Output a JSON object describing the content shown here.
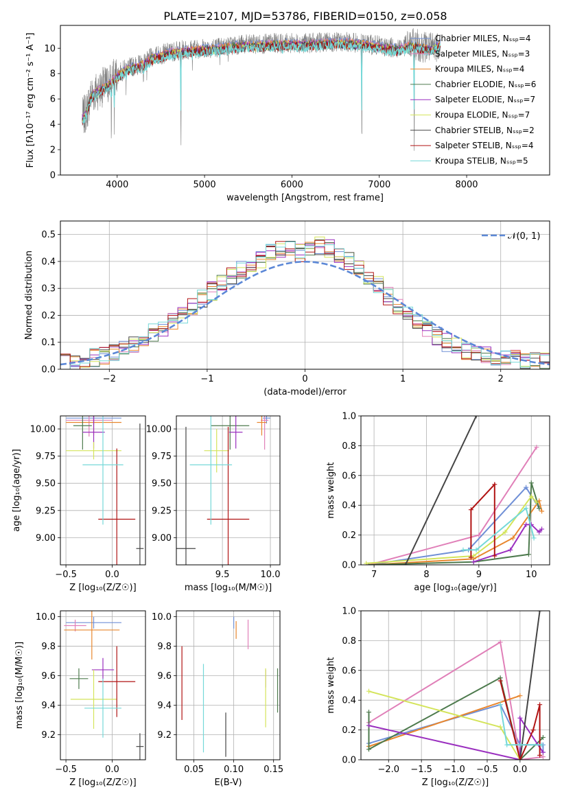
{
  "colors": {
    "spectrum": "#808080",
    "models": [
      "#6f8fd6",
      "#e07fb8",
      "#e8862d",
      "#4d7a4d",
      "#9a2fbf",
      "#d4e45a",
      "#444444",
      "#b01212",
      "#74d8d8"
    ],
    "normal_curve": "#5b87d6",
    "grid": "#b0b0b0"
  },
  "model_names": [
    "Chabrier MILES",
    "Salpeter MILES",
    "Kroupa MILES",
    "Chabrier ELODIE",
    "Salpeter ELODIE",
    "Kroupa ELODIE",
    "Chabrier STELIB",
    "Salpeter STELIB",
    "Kroupa STELIB"
  ],
  "chart_data": [
    {
      "id": "spectrum",
      "type": "line",
      "title": "PLATE=2107, MJD=53786, FIBERID=0150, z=0.058",
      "xlabel": "wavelength [Angstrom, rest frame]",
      "ylabel": "Flux [fλ10⁻¹⁷ erg cm⁻² s⁻¹ A⁻¹]",
      "xlim": [
        3350,
        8950
      ],
      "ylim": [
        0,
        11.8
      ],
      "xticks": [
        4000,
        5000,
        6000,
        7000,
        8000
      ],
      "yticks": [
        0,
        2,
        4,
        6,
        8,
        10
      ],
      "legend_position": "right",
      "legend": [
        "Chabrier MILES, Nₛₛₚ=4",
        "Salpeter MILES, Nₛₛₚ=3",
        "Kroupa MILES, Nₛₛₚ=4",
        "Chabrier ELODIE, Nₛₛₚ=6",
        "Salpeter ELODIE, Nₛₛₚ=7",
        "Kroupa ELODIE, Nₛₛₚ=7",
        "Chabrier STELIB, Nₛₛₚ=2",
        "Salpeter STELIB, Nₛₛₚ=4",
        "Kroupa STELIB, Nₛₛₚ=5"
      ],
      "continuum": {
        "x": [
          3600,
          3650,
          3700,
          3800,
          3900,
          4000,
          4100,
          4200,
          4300,
          4400,
          4500,
          4600,
          4800,
          5000,
          5200,
          5400,
          5600,
          5800,
          6000,
          6200,
          6400,
          6600,
          6800,
          7000,
          7200,
          7400,
          7600,
          7700
        ],
        "y": [
          4.5,
          5.0,
          6.3,
          6.8,
          7.2,
          7.9,
          8.4,
          8.6,
          8.8,
          9.3,
          9.5,
          9.7,
          9.9,
          10.0,
          10.1,
          10.3,
          10.3,
          10.4,
          10.4,
          10.4,
          10.5,
          10.5,
          10.4,
          10.2,
          10.0,
          10.3,
          10.0,
          10.4
        ]
      },
      "absorption_lines": [
        {
          "x": 3933,
          "depth": 5.0
        },
        {
          "x": 3968,
          "depth": 4.0
        },
        {
          "x": 4102,
          "depth": 1.6
        },
        {
          "x": 4300,
          "depth": 1.8
        },
        {
          "x": 4340,
          "depth": 1.4
        },
        {
          "x": 4730,
          "depth": 9.8
        },
        {
          "x": 4861,
          "depth": 1.0
        },
        {
          "x": 5175,
          "depth": 1.6
        },
        {
          "x": 5270,
          "depth": 0.8
        },
        {
          "x": 5890,
          "depth": 1.2
        },
        {
          "x": 6800,
          "depth": 10.4
        },
        {
          "x": 7400,
          "depth": 10.3
        }
      ]
    },
    {
      "id": "residuals",
      "type": "histogram",
      "xlabel": "(data-model)/error",
      "ylabel": "Normed distribution",
      "xlim": [
        -2.5,
        2.5
      ],
      "ylim": [
        0,
        0.55
      ],
      "xticks": [
        -2,
        -1,
        0,
        1,
        2
      ],
      "yticks": [
        0.0,
        0.1,
        0.2,
        0.3,
        0.4,
        0.5
      ],
      "legend_position": "top-right",
      "legend": "𝒩(0, 1)",
      "bin_edges": [
        -2.5,
        -2.4,
        -2.3,
        -2.2,
        -2.1,
        -2.0,
        -1.9,
        -1.8,
        -1.7,
        -1.6,
        -1.5,
        -1.4,
        -1.3,
        -1.2,
        -1.1,
        -1.0,
        -0.9,
        -0.8,
        -0.7,
        -0.6,
        -0.5,
        -0.4,
        -0.3,
        -0.2,
        -0.1,
        0.0,
        0.1,
        0.2,
        0.3,
        0.4,
        0.5,
        0.6,
        0.7,
        0.8,
        0.9,
        1.0,
        1.1,
        1.2,
        1.3,
        1.4,
        1.5,
        1.6,
        1.7,
        1.8,
        1.9,
        2.0,
        2.1,
        2.2,
        2.3,
        2.4,
        2.5
      ],
      "base_density": [
        0.022,
        0.028,
        0.034,
        0.043,
        0.052,
        0.062,
        0.075,
        0.092,
        0.113,
        0.135,
        0.158,
        0.18,
        0.205,
        0.232,
        0.26,
        0.29,
        0.318,
        0.345,
        0.37,
        0.392,
        0.41,
        0.43,
        0.445,
        0.45,
        0.43,
        0.44,
        0.46,
        0.45,
        0.43,
        0.4,
        0.37,
        0.34,
        0.31,
        0.27,
        0.235,
        0.2,
        0.17,
        0.145,
        0.12,
        0.1,
        0.085,
        0.07,
        0.06,
        0.055,
        0.05,
        0.045,
        0.04,
        0.035,
        0.032,
        0.028
      ],
      "normal_curve": {
        "mean": 0,
        "sigma": 1
      }
    },
    {
      "id": "age-vs-z",
      "type": "errorbar",
      "xlabel": "Z [log₁₀(Z/Z☉)]",
      "ylabel": "age  [log₁₀(age/yr)]",
      "xlim": [
        -0.56,
        0.36
      ],
      "ylim": [
        8.75,
        10.12
      ],
      "xticks": [
        -0.5,
        0.0
      ],
      "yticks": [
        9.0,
        9.25,
        9.5,
        9.75,
        10.0
      ],
      "points": [
        {
          "x": -0.2,
          "y": 10.1,
          "xerr": 0.3,
          "yerr": 0.06
        },
        {
          "x": -0.25,
          "y": 10.08,
          "xerr": 0.25,
          "yerr": 0.15
        },
        {
          "x": -0.2,
          "y": 10.06,
          "xerr": 0.3,
          "yerr": 0.12
        },
        {
          "x": -0.32,
          "y": 10.03,
          "xerr": 0.1,
          "yerr": 0.22
        },
        {
          "x": -0.2,
          "y": 9.97,
          "xerr": 0.12,
          "yerr": 0.15
        },
        {
          "x": -0.2,
          "y": 9.8,
          "xerr": 0.3,
          "yerr": 0.08
        },
        {
          "x": 0.3,
          "y": 8.9,
          "xerr": 0.04,
          "yerr": 1.15
        },
        {
          "x": 0.05,
          "y": 9.17,
          "xerr": 0.2,
          "yerr": 0.65
        },
        {
          "x": -0.1,
          "y": 9.67,
          "xerr": 0.22,
          "yerr": 0.55
        }
      ]
    },
    {
      "id": "age-vs-mass",
      "type": "errorbar",
      "xlabel": "mass [log₁₀(M/M☉)]",
      "ylabel": "",
      "xlim": [
        9.02,
        10.1
      ],
      "ylim": [
        8.75,
        10.12
      ],
      "xticks": [
        9.5,
        10.0
      ],
      "yticks": [
        9.0,
        9.25,
        9.5,
        9.75,
        10.0
      ],
      "points": [
        {
          "x": 9.96,
          "y": 10.1,
          "xerr": 0.04,
          "yerr": 0.05
        },
        {
          "x": 9.94,
          "y": 10.08,
          "xerr": 0.04,
          "yerr": 0.27
        },
        {
          "x": 9.91,
          "y": 10.06,
          "xerr": 0.05,
          "yerr": 0.12
        },
        {
          "x": 9.58,
          "y": 10.03,
          "xerr": 0.2,
          "yerr": 0.22
        },
        {
          "x": 9.64,
          "y": 9.97,
          "xerr": 0.07,
          "yerr": 0.15
        },
        {
          "x": 9.44,
          "y": 9.8,
          "xerr": 0.13,
          "yerr": 0.2
        },
        {
          "x": 9.12,
          "y": 8.9,
          "xerr": 0.1,
          "yerr": 1.12
        },
        {
          "x": 9.56,
          "y": 9.17,
          "xerr": 0.22,
          "yerr": 0.85
        },
        {
          "x": 9.38,
          "y": 9.67,
          "xerr": 0.22,
          "yerr": 0.55
        }
      ]
    },
    {
      "id": "weight-vs-age",
      "type": "line",
      "xlabel": "age  [log₁₀(age/yr)]",
      "ylabel": "mass weight",
      "xlim": [
        6.75,
        10.35
      ],
      "ylim": [
        0,
        1.0
      ],
      "xticks": [
        7,
        8,
        9,
        10
      ],
      "yticks": [
        0.0,
        0.2,
        0.4,
        0.6,
        0.8,
        1.0
      ],
      "series": [
        {
          "x": [
            6.9,
            8.8,
            9.9,
            10.15
          ],
          "y": [
            0.0,
            0.1,
            0.52,
            0.38
          ]
        },
        {
          "x": [
            6.9,
            9.0,
            10.1
          ],
          "y": [
            0.0,
            0.2,
            0.79
          ]
        },
        {
          "x": [
            6.9,
            8.9,
            9.65,
            10.15,
            10.2
          ],
          "y": [
            0.0,
            0.04,
            0.18,
            0.43,
            0.36
          ]
        },
        {
          "x": [
            6.9,
            8.9,
            9.95,
            10.0,
            10.15
          ],
          "y": [
            0.0,
            0.02,
            0.07,
            0.55,
            0.38
          ]
        },
        {
          "x": [
            8.9,
            9.6,
            9.9,
            10.0,
            10.15,
            10.2
          ],
          "y": [
            0.02,
            0.1,
            0.27,
            0.27,
            0.22,
            0.24
          ]
        },
        {
          "x": [
            6.85,
            8.9,
            9.5,
            10.0,
            10.1
          ],
          "y": [
            0.01,
            0.06,
            0.22,
            0.46,
            0.42
          ]
        },
        {
          "x": [
            7.6,
            8.95
          ],
          "y": [
            0.0,
            1.0
          ]
        },
        {
          "x": [
            8.85,
            8.85,
            9.3,
            9.3
          ],
          "y": [
            0.05,
            0.37,
            0.54,
            0.06
          ]
        },
        {
          "x": [
            8.7,
            8.95,
            9.9,
            10.05
          ],
          "y": [
            0.1,
            0.1,
            0.38,
            0.18
          ]
        }
      ]
    },
    {
      "id": "mass-vs-z",
      "type": "errorbar",
      "xlabel": "Z [log₁₀(Z/Z☉)]",
      "ylabel": "mass [log₁₀(M/M☉)]",
      "xlim": [
        -0.56,
        0.36
      ],
      "ylim": [
        9.03,
        10.04
      ],
      "xticks": [
        -0.5,
        0.0
      ],
      "yticks": [
        9.2,
        9.4,
        9.6,
        9.8,
        10.0
      ],
      "points": [
        {
          "x": -0.2,
          "y": 9.96,
          "xerr": 0.3,
          "yerr": 0.04
        },
        {
          "x": -0.4,
          "y": 9.94,
          "xerr": 0.12,
          "yerr": 0.04
        },
        {
          "x": -0.22,
          "y": 9.91,
          "xerr": 0.3,
          "yerr": 0.2
        },
        {
          "x": -0.36,
          "y": 9.58,
          "xerr": 0.1,
          "yerr": 0.07
        },
        {
          "x": -0.1,
          "y": 9.64,
          "xerr": 0.12,
          "yerr": 0.08
        },
        {
          "x": -0.2,
          "y": 9.44,
          "xerr": 0.25,
          "yerr": 0.2
        },
        {
          "x": 0.3,
          "y": 9.12,
          "xerr": 0.04,
          "yerr": 0.09
        },
        {
          "x": 0.05,
          "y": 9.56,
          "xerr": 0.2,
          "yerr": 0.24
        },
        {
          "x": -0.1,
          "y": 9.38,
          "xerr": 0.2,
          "yerr": 0.2
        }
      ]
    },
    {
      "id": "mass-vs-ebv",
      "type": "errorbar",
      "xlabel": "E(B-V)",
      "ylabel": "",
      "xlim": [
        0.028,
        0.158
      ],
      "ylim": [
        9.03,
        10.04
      ],
      "xticks": [
        0.05,
        0.1,
        0.15
      ],
      "yticks": [
        9.2,
        9.4,
        9.6,
        9.8,
        10.0
      ],
      "points": [
        {
          "x": 0.1,
          "y": 9.96,
          "xerr": 0,
          "yerr": 0.04
        },
        {
          "x": 0.118,
          "y": 9.88,
          "xerr": 0,
          "yerr": 0.1
        },
        {
          "x": 0.103,
          "y": 9.91,
          "xerr": 0,
          "yerr": 0.06
        },
        {
          "x": 0.155,
          "y": 9.5,
          "xerr": 0,
          "yerr": 0.15
        },
        {
          "x": 0.14,
          "y": 9.58,
          "xerr": 0,
          "yerr": 0.06
        },
        {
          "x": 0.14,
          "y": 9.45,
          "xerr": 0,
          "yerr": 0.2
        },
        {
          "x": 0.09,
          "y": 9.2,
          "xerr": 0,
          "yerr": 0.15
        },
        {
          "x": 0.035,
          "y": 9.55,
          "xerr": 0,
          "yerr": 0.25
        },
        {
          "x": 0.062,
          "y": 9.38,
          "xerr": 0,
          "yerr": 0.3
        }
      ]
    },
    {
      "id": "weight-vs-z",
      "type": "line",
      "xlabel": "Z [log₁₀(Z/Z☉)]",
      "ylabel": "mass weight",
      "xlim": [
        -2.42,
        0.45
      ],
      "ylim": [
        0,
        1.0
      ],
      "xticks": [
        -2.0,
        -1.5,
        -1.0,
        -0.5,
        0.0
      ],
      "yticks": [
        0.0,
        0.2,
        0.4,
        0.6,
        0.8,
        1.0
      ],
      "series": [
        {
          "x": [
            -2.3,
            -0.3,
            0.0,
            0.35,
            0.35
          ],
          "y": [
            0.11,
            0.37,
            0.1,
            0.1,
            0.05
          ]
        },
        {
          "x": [
            -2.3,
            -0.3,
            0.0,
            0.35
          ],
          "y": [
            0.25,
            0.79,
            0.0,
            0.02
          ]
        },
        {
          "x": [
            -2.3,
            0.0
          ],
          "y": [
            0.09,
            0.43
          ]
        },
        {
          "x": [
            -2.3,
            -2.3,
            -0.3,
            0.0,
            0.35
          ],
          "y": [
            0.32,
            0.07,
            0.55,
            0.0,
            0.15
          ]
        },
        {
          "x": [
            -2.3,
            0.0,
            0.0,
            0.35
          ],
          "y": [
            0.23,
            0.0,
            0.28,
            0.05
          ]
        },
        {
          "x": [
            -2.3,
            -0.3,
            0.0
          ],
          "y": [
            0.46,
            0.22,
            0.0
          ]
        },
        {
          "x": [
            0.0,
            0.3
          ],
          "y": [
            0.0,
            1.0
          ]
        },
        {
          "x": [
            -0.3,
            0.0,
            0.2,
            0.3,
            0.3
          ],
          "y": [
            0.53,
            0.0,
            0.2,
            0.37,
            0.03
          ]
        },
        {
          "x": [
            -0.3,
            -0.2,
            0.0,
            0.33
          ],
          "y": [
            0.37,
            0.1,
            0.1,
            0.1
          ]
        }
      ]
    }
  ]
}
